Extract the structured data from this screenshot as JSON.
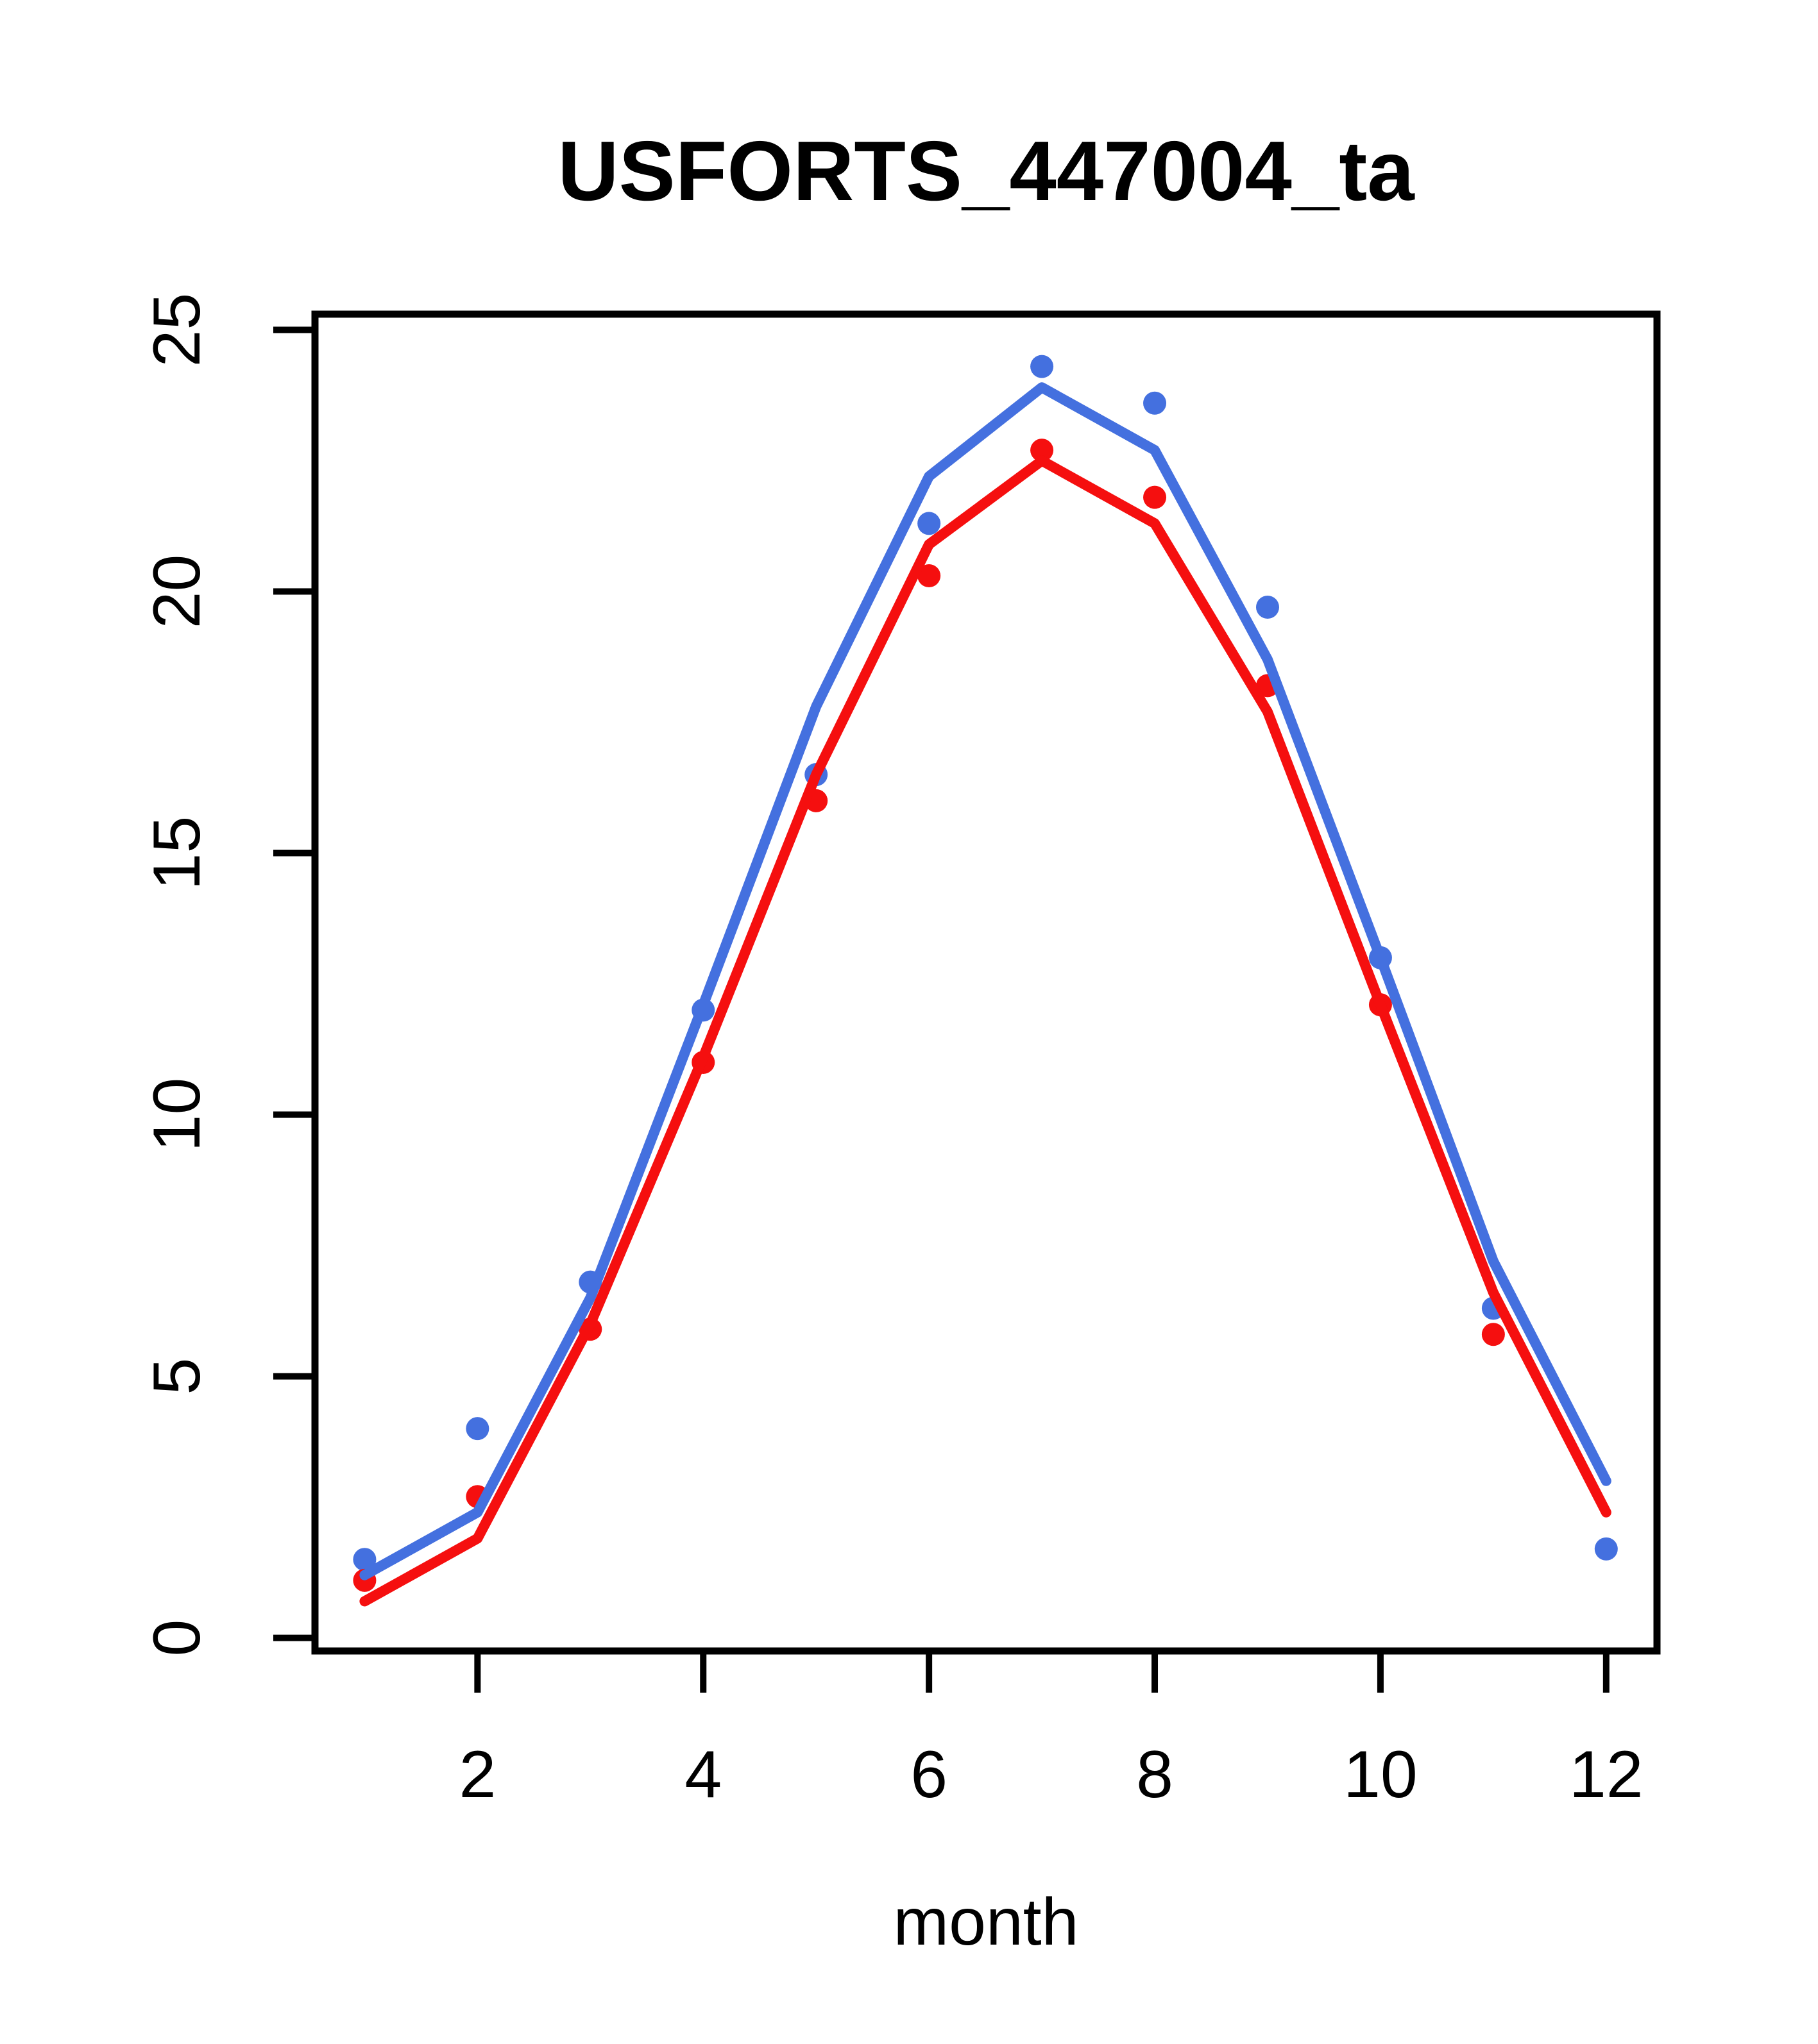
{
  "title": "USFORTS_447004_ta",
  "xlabel": "month",
  "colors": {
    "blue_series": "#4470DF",
    "red_series": "#F50F0F",
    "axis": "#000000",
    "background": "#FFFFFF"
  },
  "chart_data": {
    "type": "line",
    "title": "USFORTS_447004_ta",
    "xlabel": "month",
    "ylabel": "",
    "grid": false,
    "legend": "none",
    "x": [
      1,
      2,
      3,
      4,
      5,
      6,
      7,
      8,
      9,
      10,
      11,
      12
    ],
    "x_ticks": [
      2,
      4,
      6,
      8,
      10,
      12
    ],
    "y_ticks": [
      0,
      5,
      10,
      15,
      20,
      25
    ],
    "xlim": [
      0.56,
      12.45
    ],
    "ylim": [
      -0.25,
      25.3
    ],
    "series": [
      {
        "name": "blue-points",
        "kind": "scatter",
        "color_key": "blue_series",
        "values": [
          1.5,
          4.0,
          6.8,
          12.0,
          16.5,
          21.3,
          24.3,
          23.6,
          19.7,
          13.0,
          6.3,
          1.7
        ]
      },
      {
        "name": "red-points",
        "kind": "scatter",
        "color_key": "red_series",
        "values": [
          1.1,
          2.7,
          5.9,
          11.0,
          16.0,
          20.3,
          22.7,
          21.8,
          18.2,
          12.1,
          5.8,
          null
        ]
      },
      {
        "name": "blue-line",
        "kind": "line",
        "color_key": "blue_series",
        "values": [
          1.2,
          2.4,
          6.5,
          12.1,
          17.8,
          22.2,
          23.9,
          22.7,
          18.7,
          13.0,
          7.2,
          3.0
        ]
      },
      {
        "name": "red-line",
        "kind": "line",
        "color_key": "red_series",
        "values": [
          0.7,
          1.9,
          6.0,
          11.1,
          16.5,
          20.9,
          22.5,
          21.3,
          17.7,
          12.1,
          6.6,
          2.4
        ]
      }
    ]
  }
}
